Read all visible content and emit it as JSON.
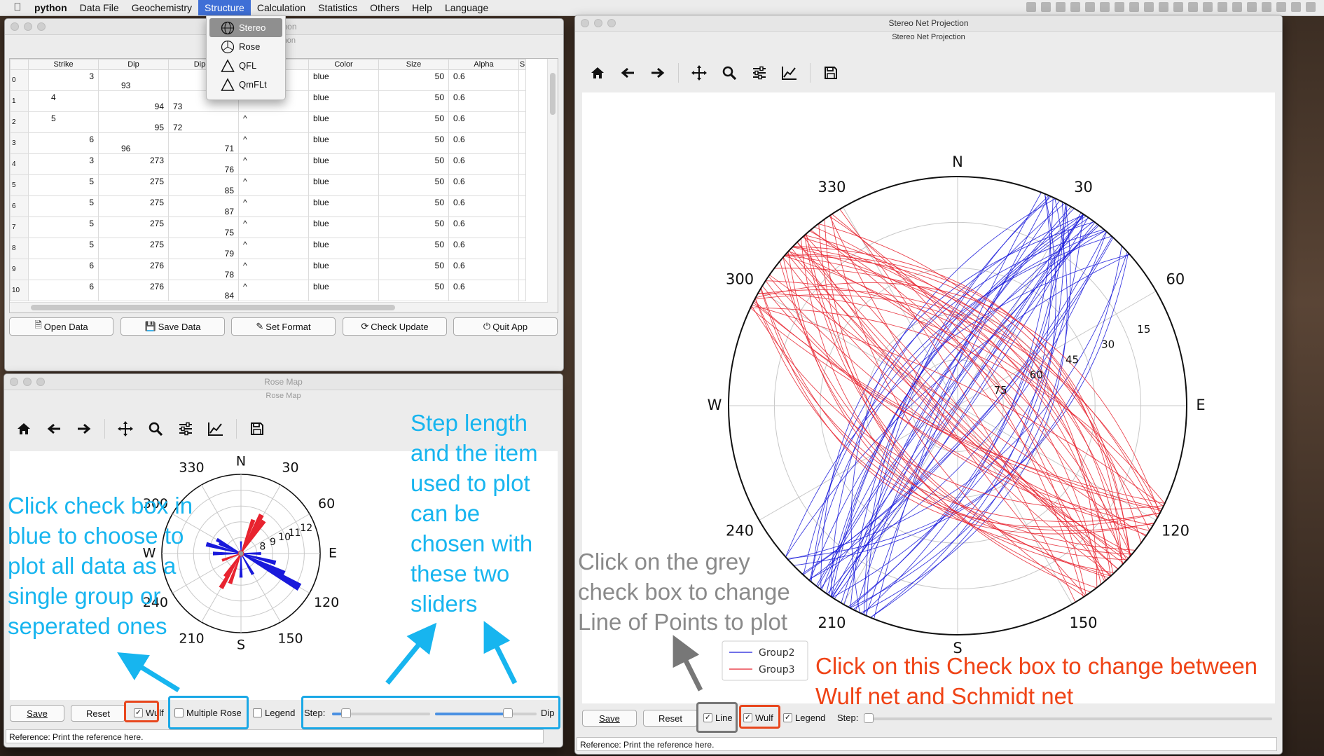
{
  "menubar": {
    "app": "python",
    "items": [
      "Data File",
      "Geochemistry",
      "Structure",
      "Calculation",
      "Statistics",
      "Others",
      "Help",
      "Language"
    ],
    "active": "Structure"
  },
  "structure_menu": {
    "items": [
      {
        "label": "Stereo",
        "icon": "globe-icon"
      },
      {
        "label": "Rose",
        "icon": "pie-icon"
      },
      {
        "label": "QFL",
        "icon": "triangle-icon"
      },
      {
        "label": "QmFLt",
        "icon": "triangle-icon"
      }
    ]
  },
  "data_window": {
    "title": "python",
    "subtitle": "python",
    "columns": [
      "Strike",
      "Dip",
      "Dip-A",
      "",
      "Color",
      "Size",
      "Alpha",
      "S"
    ],
    "rows": [
      {
        "idx": "0",
        "strike": "3",
        "dip": "93",
        "dipa": "",
        "mark": "",
        "color": "blue",
        "size": "50",
        "alpha": "0.6"
      },
      {
        "idx": "1",
        "strike": "4",
        "dip": "94",
        "dipa": "73",
        "mark": "",
        "color": "blue",
        "size": "50",
        "alpha": "0.6"
      },
      {
        "idx": "2",
        "strike": "5",
        "dip": "95",
        "dipa": "72",
        "mark": "^",
        "color": "blue",
        "size": "50",
        "alpha": "0.6"
      },
      {
        "idx": "3",
        "strike": "6",
        "dip": "96",
        "dipa": "71",
        "mark": "^",
        "color": "blue",
        "size": "50",
        "alpha": "0.6"
      },
      {
        "idx": "4",
        "strike": "3",
        "dip": "273",
        "dipa": "76",
        "mark": "^",
        "color": "blue",
        "size": "50",
        "alpha": "0.6"
      },
      {
        "idx": "5",
        "strike": "5",
        "dip": "275",
        "dipa": "85",
        "mark": "^",
        "color": "blue",
        "size": "50",
        "alpha": "0.6"
      },
      {
        "idx": "6",
        "strike": "5",
        "dip": "275",
        "dipa": "87",
        "mark": "^",
        "color": "blue",
        "size": "50",
        "alpha": "0.6"
      },
      {
        "idx": "7",
        "strike": "5",
        "dip": "275",
        "dipa": "75",
        "mark": "^",
        "color": "blue",
        "size": "50",
        "alpha": "0.6"
      },
      {
        "idx": "8",
        "strike": "5",
        "dip": "275",
        "dipa": "79",
        "mark": "^",
        "color": "blue",
        "size": "50",
        "alpha": "0.6"
      },
      {
        "idx": "9",
        "strike": "6",
        "dip": "276",
        "dipa": "78",
        "mark": "^",
        "color": "blue",
        "size": "50",
        "alpha": "0.6"
      },
      {
        "idx": "10",
        "strike": "6",
        "dip": "276",
        "dipa": "84",
        "mark": "^",
        "color": "blue",
        "size": "50",
        "alpha": "0.6"
      }
    ],
    "buttons": {
      "open": "Open Data",
      "save": "Save Data",
      "format": "Set Format",
      "update": "Check Update",
      "quit": "Quit App"
    }
  },
  "rose_window": {
    "title": "Rose Map",
    "subtitle": "Rose Map",
    "plot": {
      "dirs": {
        "N": "N",
        "E": "E",
        "S": "S",
        "W": "W"
      },
      "angles": [
        "30",
        "60",
        "120",
        "150",
        "210",
        "240",
        "300",
        "330"
      ],
      "radial": [
        "8",
        "9",
        "10",
        "11",
        "12"
      ]
    },
    "controls": {
      "save": "Save",
      "reset": "Reset",
      "wulf": "Wulf",
      "multiple": "Multiple Rose",
      "legend": "Legend",
      "step": "Step:",
      "dip": "Dip"
    },
    "sliders": {
      "step": 0.1,
      "item": 0.74
    },
    "reference": "Reference:   Print the reference here."
  },
  "stereo_window": {
    "title": "Stereo Net Projection",
    "subtitle": "Stereo Net Projection",
    "plot": {
      "dirs": {
        "N": "N",
        "E": "E",
        "S": "S",
        "W": "W"
      },
      "angles": [
        "30",
        "60",
        "120",
        "150",
        "210",
        "240",
        "300",
        "330"
      ],
      "radial": [
        "15",
        "30",
        "45",
        "60",
        "75"
      ],
      "legend": [
        "Group2",
        "Group3"
      ]
    },
    "controls": {
      "save": "Save",
      "reset": "Reset",
      "line": "Line",
      "wulf": "Wulf",
      "legend": "Legend",
      "step": "Step:"
    },
    "reference": "Reference:   Print the reference here."
  },
  "annotations": {
    "rose_check": "Click check box in blue to choose to plot all data as a single group or seperated ones",
    "rose_sliders": "Step length and the item used to plot can be chosen with these two sliders",
    "stereo_line": "Click on the grey check box to change Line of Points to plot",
    "stereo_wulf": "Click on this Check box to change between Wulf net and Schmidt net"
  },
  "colors": {
    "highlight_red": "#e8471e",
    "highlight_blue": "#1aa8e6",
    "highlight_grey": "#777777",
    "group2": "#1a1adb",
    "group3": "#e8232f"
  }
}
